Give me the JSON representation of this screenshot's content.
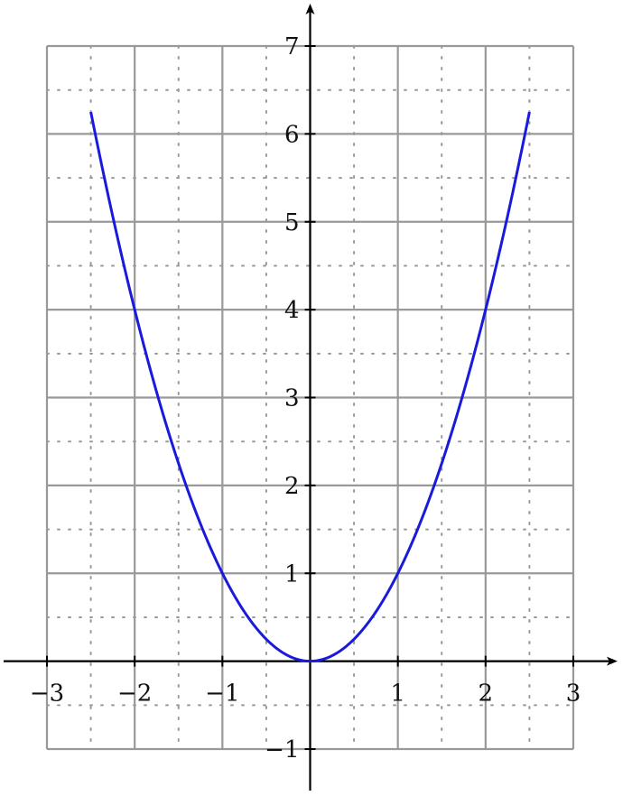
{
  "chart_data": {
    "type": "line",
    "title": "",
    "xlabel": "",
    "ylabel": "",
    "xlim": [
      -3,
      3
    ],
    "ylim": [
      -1,
      7
    ],
    "grid": {
      "major": true,
      "minor_dotted": true,
      "major_step": 1,
      "minor_step": 0.5
    },
    "x_ticks": [
      -3,
      -2,
      -1,
      1,
      2,
      3
    ],
    "y_ticks": [
      -1,
      1,
      2,
      3,
      4,
      5,
      6,
      7
    ],
    "x_tick_labels": [
      "−3",
      "−2",
      "−1",
      "1",
      "2",
      "3"
    ],
    "y_tick_labels": [
      "−1",
      "1",
      "2",
      "3",
      "4",
      "5",
      "6",
      "7"
    ],
    "series": [
      {
        "function": "x^2",
        "domain": [
          -2.5,
          2.5
        ],
        "color": "#1a1adb",
        "points": [
          [
            -2.5,
            6.25
          ],
          [
            -2.0,
            4.0
          ],
          [
            -1.5,
            2.25
          ],
          [
            -1.0,
            1.0
          ],
          [
            -0.5,
            0.25
          ],
          [
            0.0,
            0.0
          ],
          [
            0.5,
            0.25
          ],
          [
            1.0,
            1.0
          ],
          [
            1.5,
            2.25
          ],
          [
            2.0,
            4.0
          ],
          [
            2.5,
            6.25
          ]
        ]
      }
    ],
    "colors": {
      "major_grid": "#999999",
      "minor_grid": "#999999",
      "axis": "#000000"
    }
  }
}
